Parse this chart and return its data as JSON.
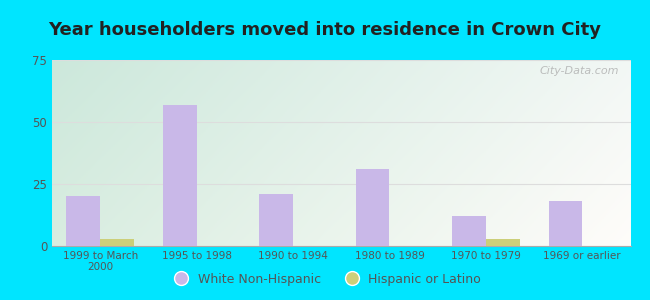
{
  "title": "Year householders moved into residence in Crown City",
  "categories": [
    "1999 to March\n2000",
    "1995 to 1998",
    "1990 to 1994",
    "1980 to 1989",
    "1970 to 1979",
    "1969 or earlier"
  ],
  "white_values": [
    20,
    57,
    21,
    31,
    12,
    18
  ],
  "hispanic_values": [
    3,
    0,
    0,
    0,
    3,
    0
  ],
  "white_color": "#c9b8e8",
  "hispanic_color": "#cccf7a",
  "bar_width": 0.35,
  "ylim": [
    0,
    75
  ],
  "yticks": [
    0,
    25,
    50,
    75
  ],
  "bg_outer": "#00e5ff",
  "bg_plot_grad_left": "#c8e6c0",
  "bg_plot_grad_right": "#f0f8f8",
  "title_color": "#222222",
  "title_fontsize": 13,
  "watermark_text": "City-Data.com",
  "legend_white": "White Non-Hispanic",
  "legend_hispanic": "Hispanic or Latino",
  "tick_color": "#555555",
  "grid_color": "#dddddd"
}
